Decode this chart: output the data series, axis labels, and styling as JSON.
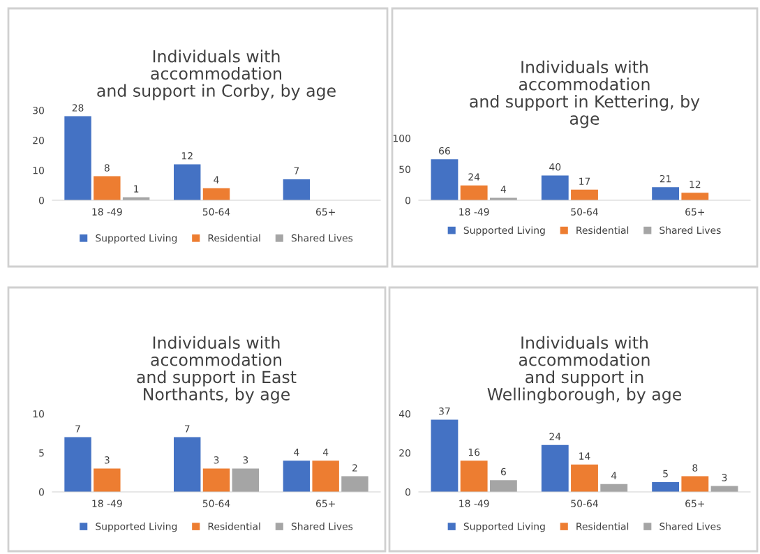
{
  "chart_data": [
    {
      "type": "bar",
      "title": "Individuals with\naccommodation\nand support in Corby, by age",
      "categories": [
        "18 -49",
        "50-64",
        "65+"
      ],
      "ylim": [
        0,
        30
      ],
      "yticks": [
        0,
        10,
        20,
        30
      ],
      "data_labels": true,
      "legend": "bottom",
      "grid": false,
      "series": [
        {
          "name": "Supported Living",
          "color": "#4472c4",
          "values": [
            28,
            12,
            7
          ]
        },
        {
          "name": "Residential",
          "color": "#ed7d31",
          "values": [
            8,
            4,
            null
          ]
        },
        {
          "name": "Shared Lives",
          "color": "#a5a5a5",
          "values": [
            1,
            null,
            null
          ]
        }
      ]
    },
    {
      "type": "bar",
      "title": "Individuals with\naccommodation\nand support in Kettering, by\nage",
      "categories": [
        "18 -49",
        "50-64",
        "65+"
      ],
      "ylim": [
        0,
        100
      ],
      "yticks": [
        0,
        50,
        100
      ],
      "data_labels": true,
      "legend": "bottom",
      "grid": false,
      "series": [
        {
          "name": "Supported Living",
          "color": "#4472c4",
          "values": [
            66,
            40,
            21
          ]
        },
        {
          "name": "Residential",
          "color": "#ed7d31",
          "values": [
            24,
            17,
            12
          ]
        },
        {
          "name": "Shared Lives",
          "color": "#a5a5a5",
          "values": [
            4,
            null,
            null
          ]
        }
      ]
    },
    {
      "type": "bar",
      "title": "Individuals with\naccommodation\nand support in East\nNorthants, by age",
      "categories": [
        "18 -49",
        "50-64",
        "65+"
      ],
      "ylim": [
        0,
        10
      ],
      "yticks": [
        0,
        5,
        10
      ],
      "data_labels": true,
      "legend": "bottom",
      "grid": false,
      "series": [
        {
          "name": "Supported Living",
          "color": "#4472c4",
          "values": [
            7,
            7,
            4
          ]
        },
        {
          "name": "Residential",
          "color": "#ed7d31",
          "values": [
            3,
            3,
            4
          ]
        },
        {
          "name": "Shared Lives",
          "color": "#a5a5a5",
          "values": [
            null,
            3,
            2
          ]
        }
      ]
    },
    {
      "type": "bar",
      "title": "Individuals with\naccommodation\nand support in\nWellingborough, by age",
      "categories": [
        "18 -49",
        "50-64",
        "65+"
      ],
      "ylim": [
        0,
        40
      ],
      "yticks": [
        0,
        20,
        40
      ],
      "data_labels": true,
      "legend": "bottom",
      "grid": false,
      "series": [
        {
          "name": "Supported Living",
          "color": "#4472c4",
          "values": [
            37,
            24,
            5
          ]
        },
        {
          "name": "Residential",
          "color": "#ed7d31",
          "values": [
            16,
            14,
            8
          ]
        },
        {
          "name": "Shared Lives",
          "color": "#a5a5a5",
          "values": [
            6,
            4,
            3
          ]
        }
      ]
    }
  ]
}
